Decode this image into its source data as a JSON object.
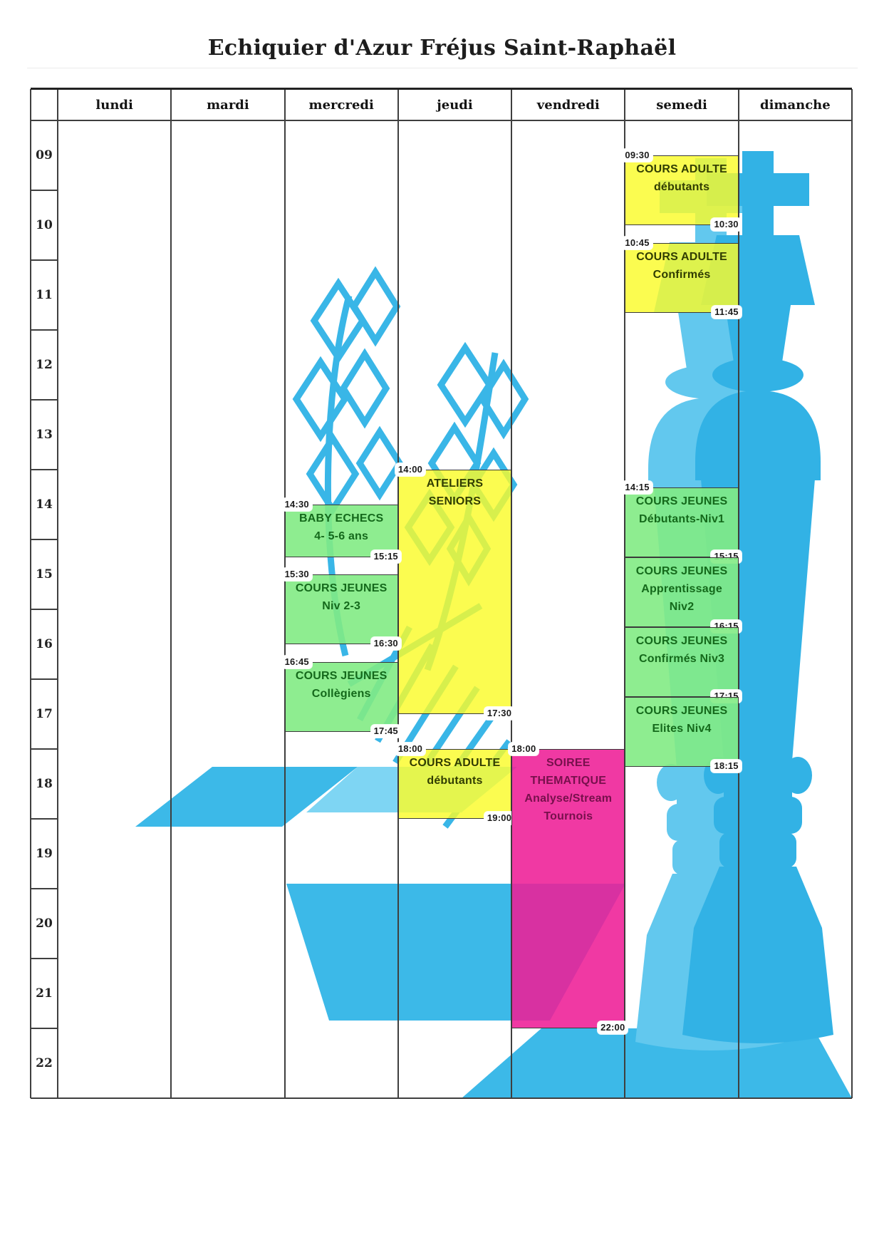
{
  "title": "Echiquier d'Azur Fréjus Saint-Raphaël",
  "days": [
    "lundi",
    "mardi",
    "mercredi",
    "jeudi",
    "vendredi",
    "semedi",
    "dimanche"
  ],
  "hours": [
    "09",
    "10",
    "11",
    "12",
    "13",
    "14",
    "15",
    "16",
    "17",
    "18",
    "19",
    "20",
    "21",
    "22"
  ],
  "events": [
    {
      "name": "cours-adulte-debutants-samedi",
      "day": "semedi",
      "lines": [
        "COURS ADULTE",
        "débutants"
      ],
      "start": "09:30",
      "end": "10:30",
      "color": "yellow",
      "start_tag_visible": true
    },
    {
      "name": "cours-adulte-confirmes",
      "day": "semedi",
      "lines": [
        "COURS ADULTE",
        "Confirmés"
      ],
      "start": "10:45",
      "end": "11:45",
      "color": "yellow",
      "start_tag_visible": true
    },
    {
      "name": "ateliers-seniors",
      "day": "jeudi",
      "lines": [
        "ATELIERS",
        "SENIORS"
      ],
      "start": "14:00",
      "end": "17:30",
      "color": "yellow",
      "start_tag_visible": true
    },
    {
      "name": "baby-echecs",
      "day": "mercredi",
      "lines": [
        "BABY ECHECS",
        "4- 5-6 ans"
      ],
      "start": "14:30",
      "end": "15:15",
      "color": "green",
      "start_tag_visible": true
    },
    {
      "name": "cours-jeunes-debutants-niv1",
      "day": "semedi",
      "lines": [
        "COURS JEUNES",
        "Débutants-Niv1"
      ],
      "start": "14:15",
      "end": "15:15",
      "color": "green",
      "start_tag_visible": true
    },
    {
      "name": "cours-jeunes-niv-2-3",
      "day": "mercredi",
      "lines": [
        "COURS JEUNES",
        "Niv 2-3"
      ],
      "start": "15:30",
      "end": "16:30",
      "color": "green",
      "start_tag_visible": true
    },
    {
      "name": "cours-jeunes-apprentissage-niv2",
      "day": "semedi",
      "lines": [
        "COURS JEUNES",
        "Apprentissage",
        "Niv2"
      ],
      "start": "15:15",
      "end": "16:15",
      "color": "green",
      "start_tag_visible": false
    },
    {
      "name": "cours-jeunes-confirmes-niv3",
      "day": "semedi",
      "lines": [
        "COURS JEUNES",
        "Confirmés Niv3"
      ],
      "start": "16:15",
      "end": "17:15",
      "color": "green",
      "start_tag_visible": false
    },
    {
      "name": "cours-jeunes-collegiens",
      "day": "mercredi",
      "lines": [
        "COURS JEUNES",
        "Collègiens"
      ],
      "start": "16:45",
      "end": "17:45",
      "color": "green",
      "start_tag_visible": true
    },
    {
      "name": "cours-jeunes-elites-niv4",
      "day": "semedi",
      "lines": [
        "COURS JEUNES",
        "Elites Niv4"
      ],
      "start": "17:15",
      "end": "18:15",
      "color": "green",
      "start_tag_visible": false
    },
    {
      "name": "cours-adulte-debutants-jeudi",
      "day": "jeudi",
      "lines": [
        "COURS ADULTE",
        "débutants"
      ],
      "start": "18:00",
      "end": "19:00",
      "color": "yellow",
      "start_tag_visible": true
    },
    {
      "name": "soiree-thematique",
      "day": "vendredi",
      "lines": [
        "SOIREE",
        "THEMATIQUE",
        "Analyse/Stream",
        "Tournois"
      ],
      "start": "18:00",
      "end": "22:00",
      "color": "pink",
      "start_tag_visible": true
    }
  ],
  "colors": {
    "event_yellow_bg": "#FAFB2A",
    "event_yellow_text": "#313D02",
    "event_green_bg": "#82EB84",
    "event_green_text": "#14691B",
    "event_pink_bg": "#EE1E96",
    "event_pink_text": "#77104C",
    "tag_bg": "#FFFFFF",
    "tag_text": "#1B1B1B",
    "grid_line": "#3F3F3F",
    "art_blue": "#32B2E5",
    "art_blue_light": "#62C8EE"
  }
}
